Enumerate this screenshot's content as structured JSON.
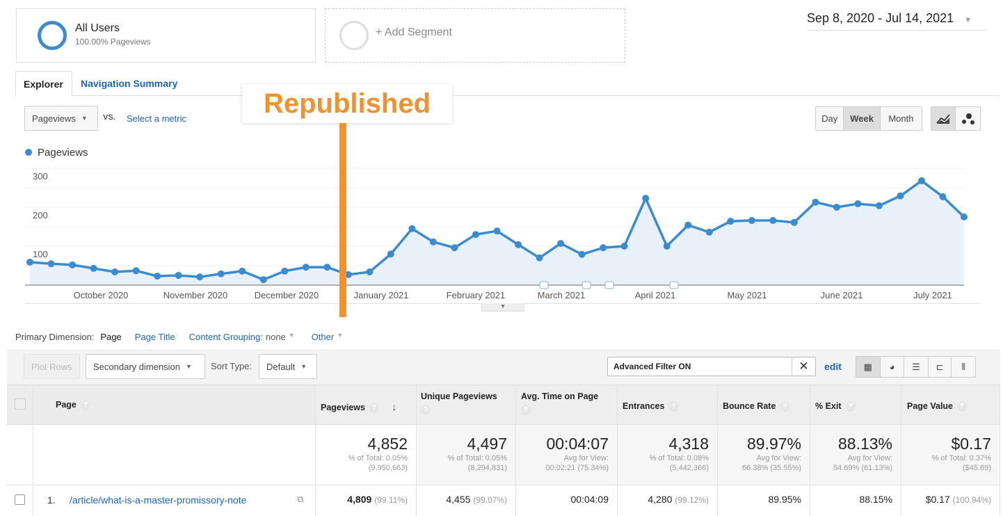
{
  "segments": {
    "all_users": {
      "title": "All Users",
      "subtitle": "100.00% Pageviews"
    },
    "add_segment": "+ Add Segment"
  },
  "date_range": "Sep 8, 2020 - Jul 14, 2021",
  "tabs": [
    {
      "label": "Explorer",
      "active": true
    },
    {
      "label": "Navigation Summary",
      "active": false
    }
  ],
  "annotation_overlay": "Republished",
  "metric_select": "Pageviews",
  "vs_label": "VS.",
  "select_metric": "Select a metric",
  "granularity": {
    "options": [
      "Day",
      "Week",
      "Month"
    ],
    "selected": "Week"
  },
  "chart_data": {
    "type": "line",
    "legend": [
      "Pageviews"
    ],
    "series": [
      {
        "name": "Pageviews",
        "color": "#3a8bd0",
        "values": [
          59,
          55,
          52,
          43,
          34,
          37,
          23,
          25,
          21,
          29,
          36,
          14,
          36,
          46,
          46,
          27,
          34,
          80,
          145,
          111,
          96,
          130,
          139,
          104,
          70,
          107,
          79,
          96,
          100,
          223,
          100,
          154,
          136,
          164,
          166,
          166,
          161,
          213,
          200,
          209,
          204,
          229,
          268,
          227,
          175
        ]
      }
    ],
    "x_ticks": [
      "October 2020",
      "November 2020",
      "December 2020",
      "January 2021",
      "February 2021",
      "March 2021",
      "April 2021",
      "May 2021",
      "June 2021",
      "July 2021"
    ],
    "y_ticks": [
      100,
      200,
      300
    ],
    "ylim": [
      0,
      300
    ],
    "grid": true,
    "area_fill": true
  },
  "dimensions": {
    "label": "Primary Dimension:",
    "items": [
      "Page",
      "Page Title"
    ],
    "content_grouping": "Content Grouping:",
    "content_grouping_value": "none",
    "other": "Other"
  },
  "toolbar": {
    "plot_rows": "Plot Rows",
    "secondary": "Secondary dimension",
    "sort_label": "Sort Type:",
    "sort_value": "Default",
    "filter": "Advanced Filter ON",
    "edit": "edit"
  },
  "table": {
    "columns": [
      "Page",
      "Pageviews",
      "Unique Pageviews",
      "Avg. Time on Page",
      "Entrances",
      "Bounce Rate",
      "% Exit",
      "Page Value"
    ],
    "totals": [
      {
        "value": "4,852",
        "sub1": "% of Total: 0.05%",
        "sub2": "(9,950,663)"
      },
      {
        "value": "4,497",
        "sub1": "% of Total: 0.05%",
        "sub2": "(8,294,831)"
      },
      {
        "value": "00:04:07",
        "sub1": "Avg for View:",
        "sub2": "00:02:21 (75.34%)"
      },
      {
        "value": "4,318",
        "sub1": "% of Total: 0.08%",
        "sub2": "(5,442,366)"
      },
      {
        "value": "89.97%",
        "sub1": "Avg for View:",
        "sub2": "66.38% (35.55%)"
      },
      {
        "value": "88.13%",
        "sub1": "Avg for View:",
        "sub2": "54.69% (61.13%)"
      },
      {
        "value": "$0.17",
        "sub1": "% of Total: 0.37%",
        "sub2": "($45.69)"
      }
    ],
    "rows": [
      {
        "index": "1.",
        "page": "/article/what-is-a-master-promissory-note",
        "cells": [
          {
            "v": "4,809",
            "p": "(99.11%)"
          },
          {
            "v": "4,455",
            "p": "(99.07%)"
          },
          {
            "v": "00:04:09",
            "p": ""
          },
          {
            "v": "4,280",
            "p": "(99.12%)"
          },
          {
            "v": "89.95%",
            "p": ""
          },
          {
            "v": "88.15%",
            "p": ""
          },
          {
            "v": "$0.17",
            "p": "(100.94%)"
          }
        ]
      }
    ]
  }
}
